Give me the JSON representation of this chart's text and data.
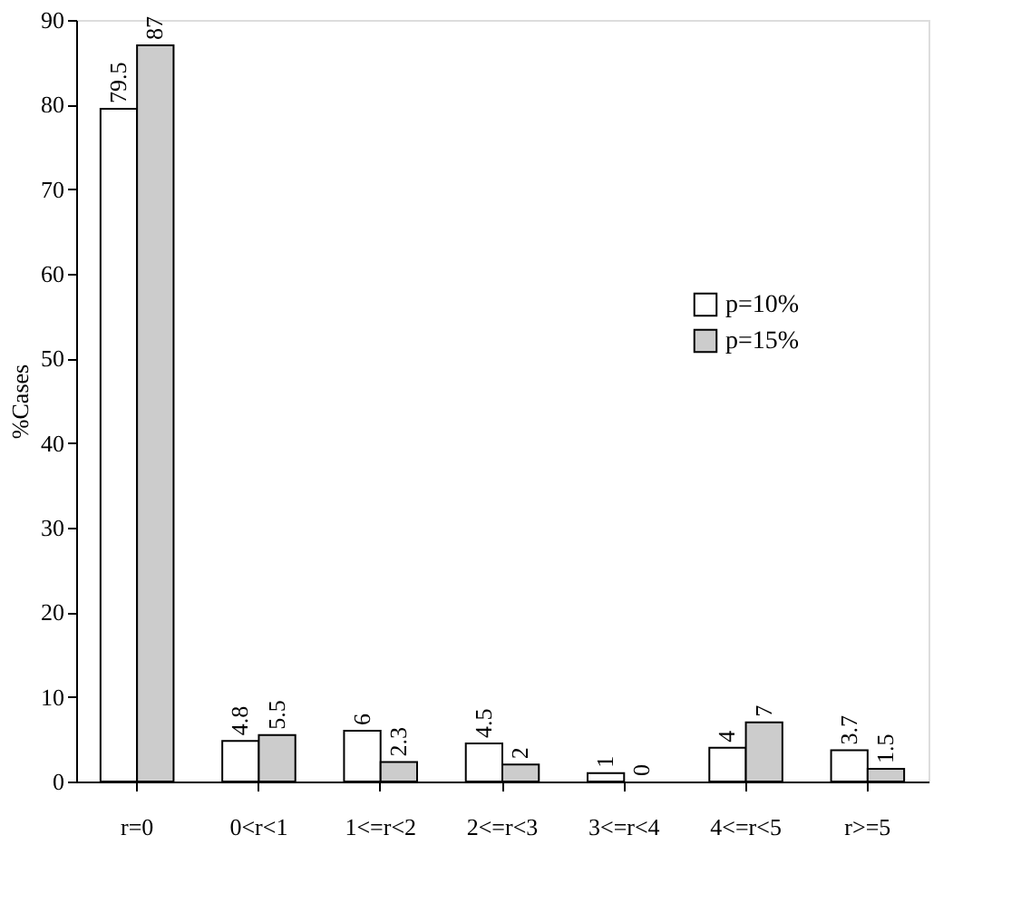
{
  "chart_data": {
    "type": "bar",
    "ylabel": "%Cases",
    "categories": [
      "r=0",
      "0<r<1",
      "1<=r<2",
      "2<=r<3",
      "3<=r<4",
      "4<=r<5",
      "r>=5"
    ],
    "series": [
      {
        "name": "p=10%",
        "color": "#ffffff",
        "values": [
          79.5,
          4.8,
          6,
          4.5,
          1,
          4,
          3.7
        ]
      },
      {
        "name": "p=15%",
        "color": "#cccccc",
        "values": [
          87,
          5.5,
          2.3,
          2,
          0,
          7,
          1.5
        ]
      }
    ],
    "ylim": [
      0,
      90
    ],
    "yticks": [
      0,
      10,
      20,
      30,
      40,
      50,
      60,
      70,
      80,
      90
    ],
    "data_labels": true,
    "legend": "top right",
    "grid": false
  }
}
